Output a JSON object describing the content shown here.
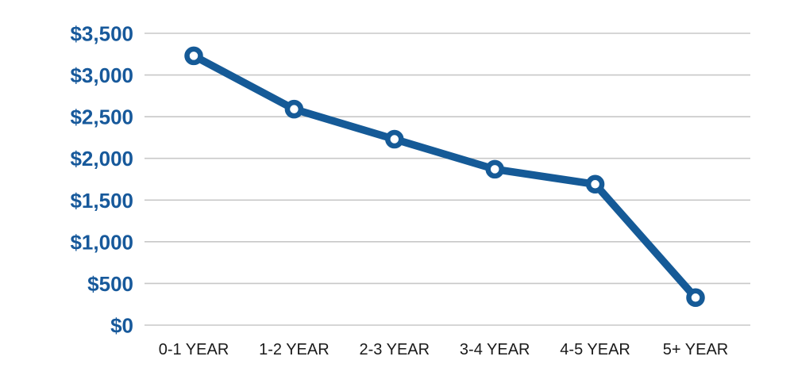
{
  "chart_data": {
    "type": "line",
    "title": "",
    "xlabel": "",
    "ylabel": "",
    "categories": [
      "0-1 YEAR",
      "1-2 YEAR",
      "2-3 YEAR",
      "3-4 YEAR",
      "4-5 YEAR",
      "5+ YEAR"
    ],
    "values": [
      3230,
      2590,
      2230,
      1870,
      1690,
      330
    ],
    "ylim": [
      0,
      3500
    ],
    "y_tick_step": 500,
    "y_tick_labels": [
      "$0",
      "$500",
      "$1,000",
      "$1,500",
      "$2,000",
      "$2,500",
      "$3,000",
      "$3,500"
    ],
    "grid": true,
    "legend": false,
    "marker": "circle-open",
    "colors": {
      "line": "#155A97",
      "marker_ring": "#155A97",
      "marker_fill": "#FFFFFF",
      "y_label": "#17599B",
      "x_label": "#1A1A1A",
      "gridline": "#C8C8C8",
      "background": "#FFFFFF"
    }
  }
}
